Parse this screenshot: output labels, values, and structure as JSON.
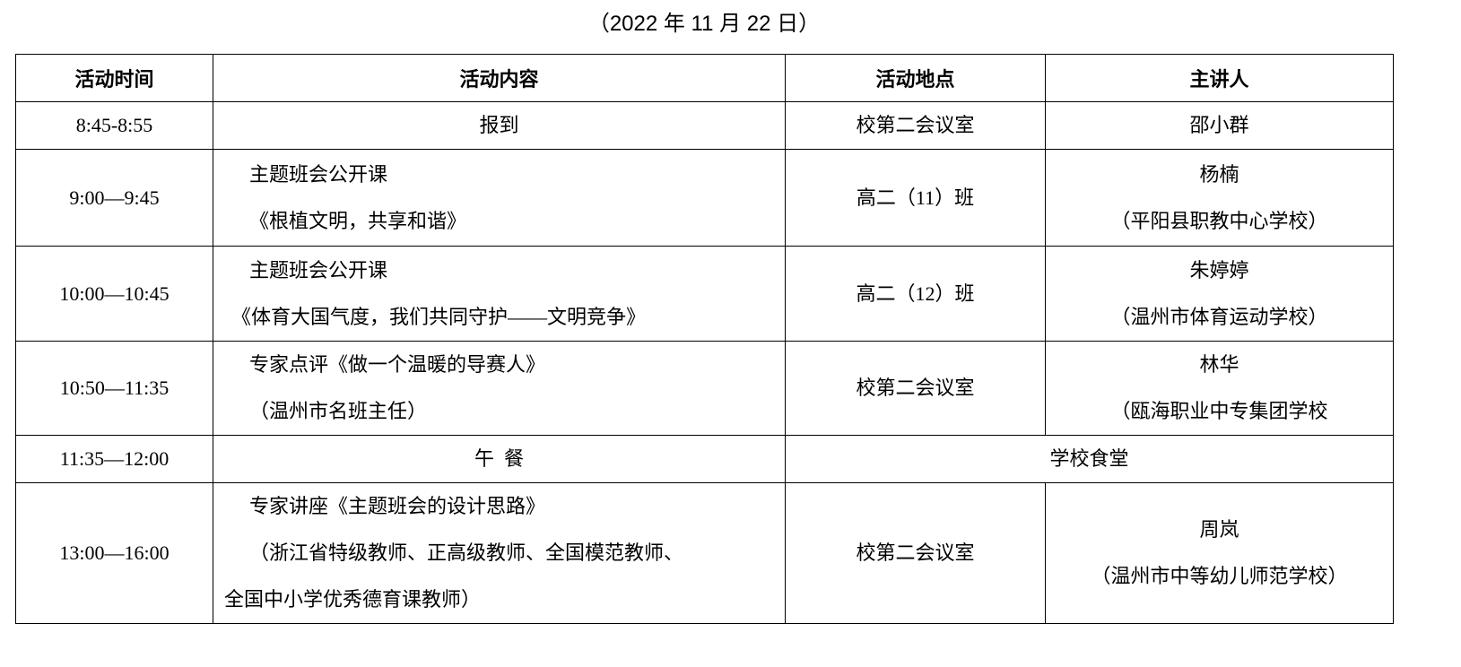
{
  "date": "（2022 年 11 月 22 日）",
  "headers": [
    "活动时间",
    "活动内容",
    "活动地点",
    "主讲人"
  ],
  "rows": [
    {
      "time": "8:45-8:55",
      "content": [
        "报到"
      ],
      "place": "校第二会议室",
      "speaker": [
        "邵小群"
      ]
    },
    {
      "time": "9:00—9:45",
      "content": [
        "主题班会公开课",
        "《根植文明，共享和谐》"
      ],
      "place": "高二（11）班",
      "speaker": [
        "杨楠",
        "（平阳县职教中心学校）"
      ]
    },
    {
      "time": "10:00—10:45",
      "content": [
        "主题班会公开课",
        "《体育大国气度，我们共同守护——文明竞争》"
      ],
      "place": "高二（12）班",
      "speaker": [
        "朱婷婷",
        "（温州市体育运动学校）"
      ]
    },
    {
      "time": "10:50—11:35",
      "content": [
        "专家点评《做一个温暖的导赛人》",
        "（温州市名班主任）"
      ],
      "place": "校第二会议室",
      "speaker": [
        "林华",
        "（瓯海职业中专集团学校"
      ]
    },
    {
      "time": "11:35—12:00",
      "content": [
        "午  餐"
      ],
      "place": "学校食堂",
      "speaker": []
    },
    {
      "time": "13:00—16:00",
      "content": [
        "专家讲座《主题班会的设计思路》",
        "（浙江省特级教师、正高级教师、全国模范教师、",
        "全国中小学优秀德育课教师）"
      ],
      "place": "校第二会议室",
      "speaker": [
        "周岚",
        "（温州市中等幼儿师范学校）"
      ]
    }
  ]
}
